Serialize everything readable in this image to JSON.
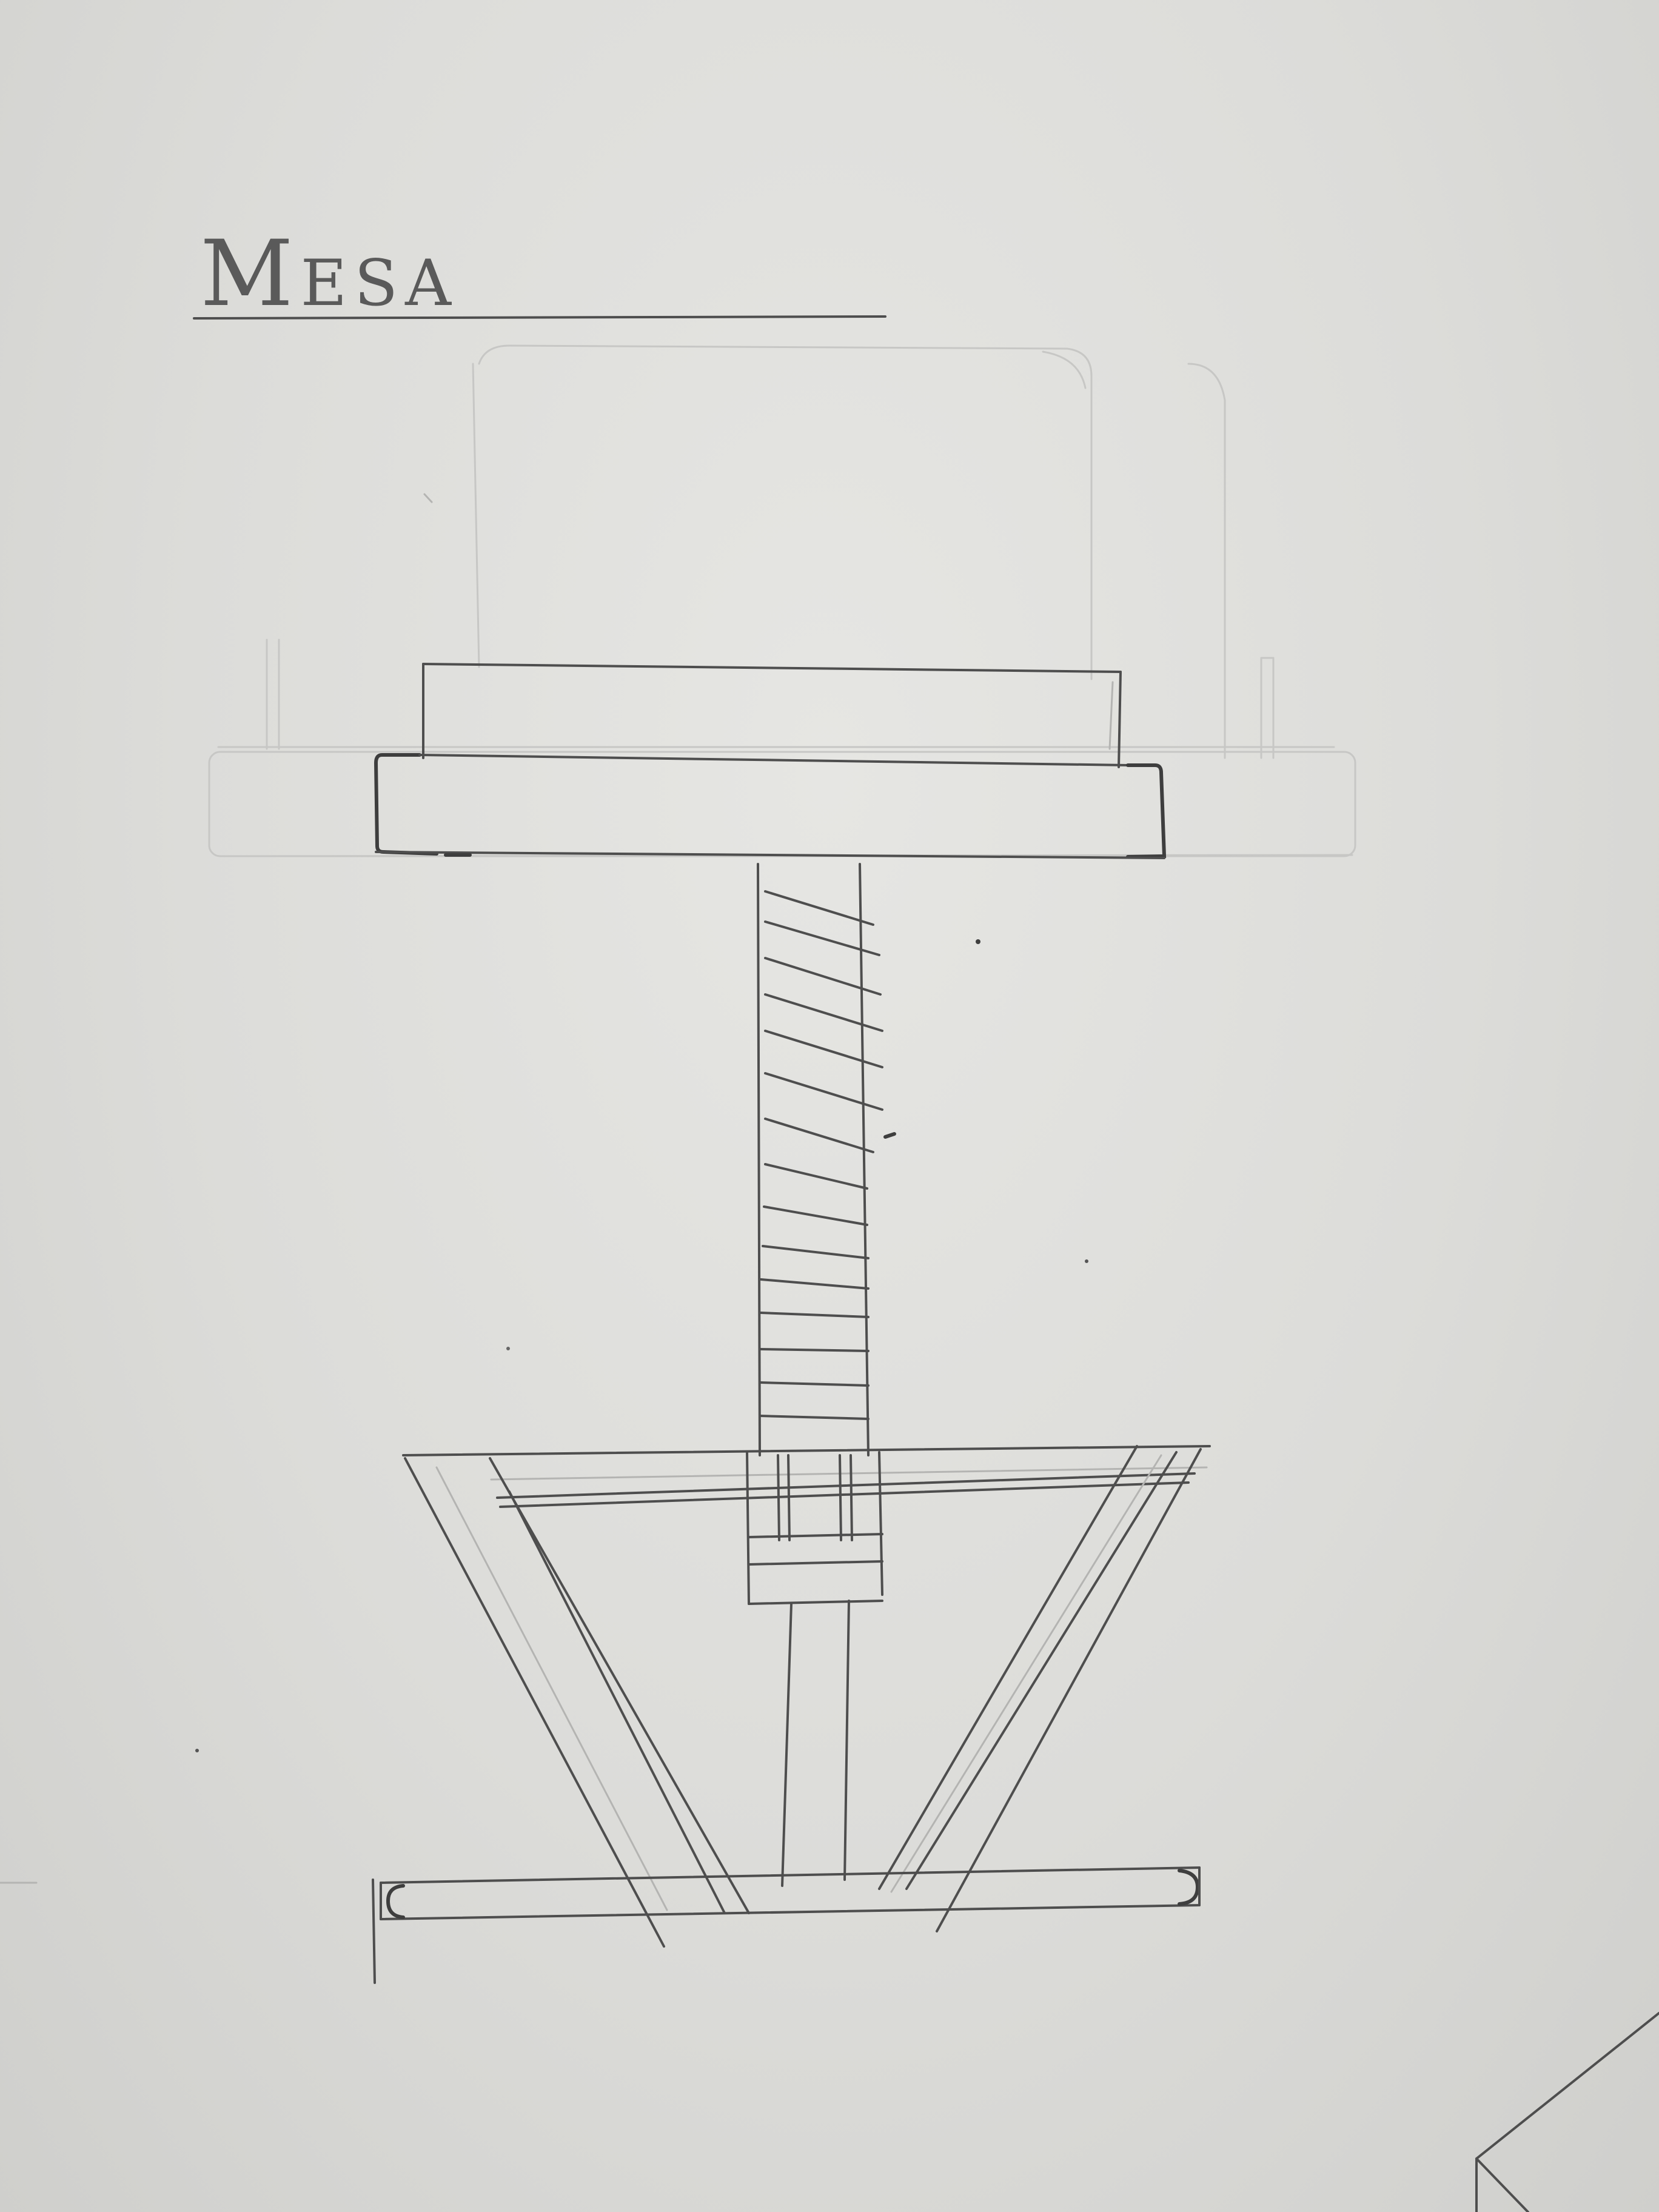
{
  "sheet": {
    "title": "Mesa",
    "paper_color": "#dcdcd9",
    "pencil_color": "#4e4e4e"
  }
}
